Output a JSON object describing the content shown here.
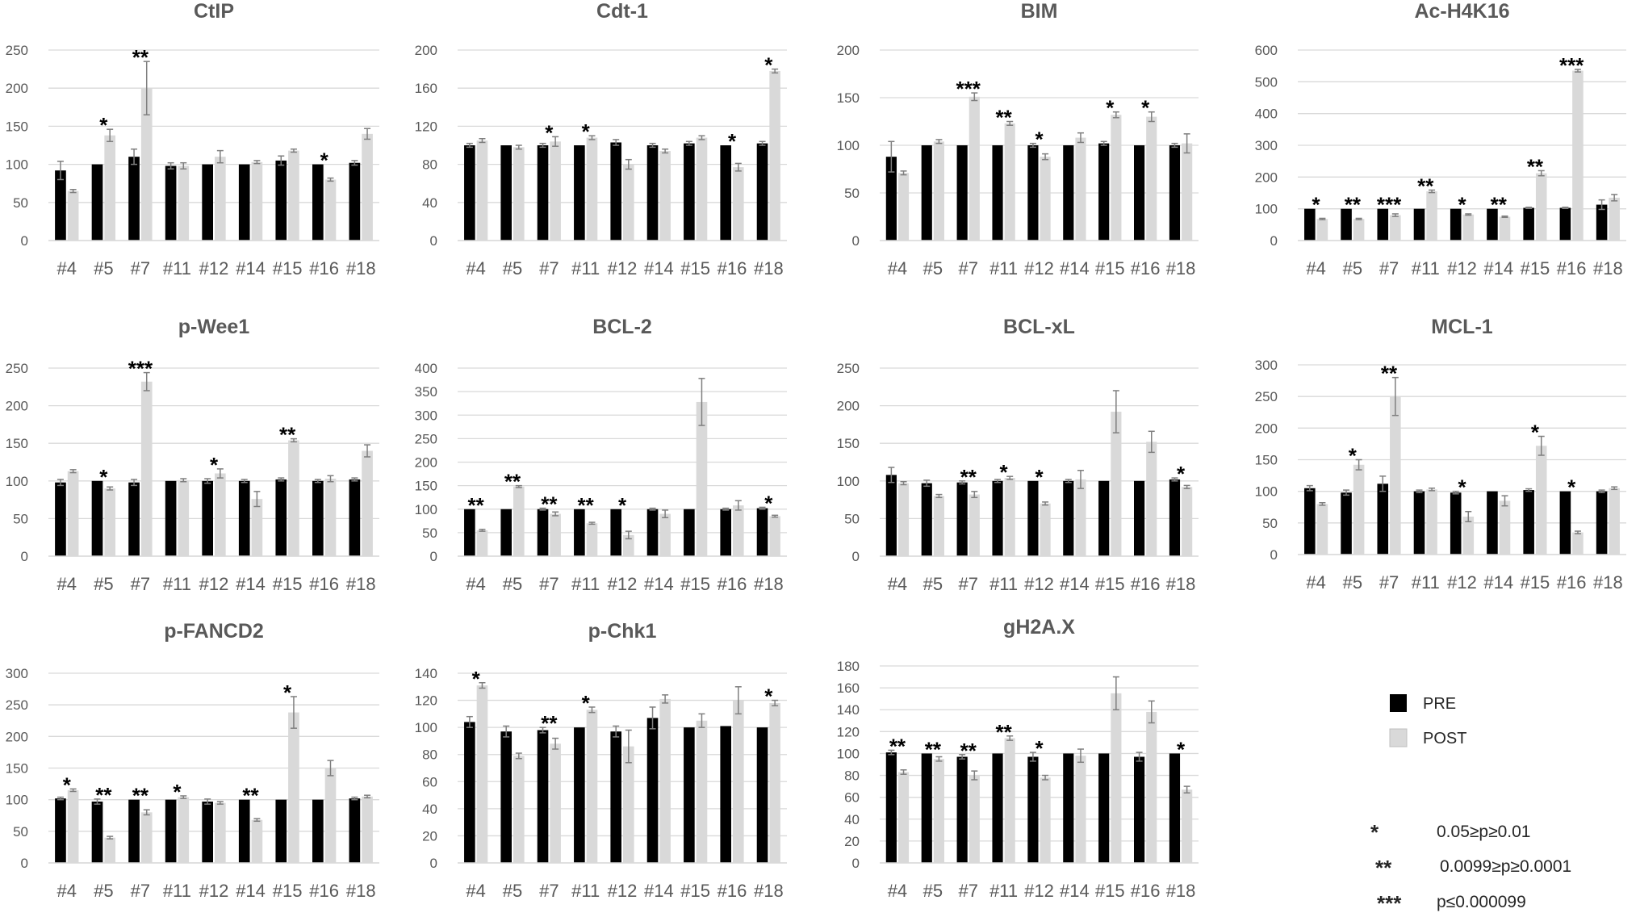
{
  "legend": {
    "series": [
      {
        "name": "PRE",
        "color": "#000000"
      },
      {
        "name": "POST",
        "color": "#d9d9d9"
      }
    ],
    "significance": [
      {
        "symbol": "*",
        "label": "0.05≥p≥0.01"
      },
      {
        "symbol": "**",
        "label": "0.0099≥p≥0.0001"
      },
      {
        "symbol": "***",
        "label": "p≤0.000099"
      }
    ]
  },
  "chart_data": [
    {
      "type": "bar",
      "title": "CtIP",
      "categories": [
        "#4",
        "#5",
        "#7",
        "#11",
        "#12",
        "#14",
        "#15",
        "#16",
        "#18"
      ],
      "ylim": [
        0,
        250
      ],
      "yticks": [
        0,
        50,
        100,
        150,
        200,
        250
      ],
      "series": [
        {
          "name": "PRE",
          "values": [
            92,
            100,
            110,
            98,
            100,
            100,
            105,
            100,
            102
          ],
          "errors": [
            12,
            0,
            10,
            4,
            0,
            0,
            6,
            0,
            3
          ]
        },
        {
          "name": "POST",
          "values": [
            65,
            138,
            200,
            98,
            110,
            103,
            118,
            80,
            140
          ],
          "errors": [
            2,
            8,
            35,
            4,
            8,
            2,
            2,
            2,
            7
          ]
        }
      ],
      "significance": [
        "",
        "*",
        "**",
        "",
        "",
        "",
        "",
        "*",
        ""
      ]
    },
    {
      "type": "bar",
      "title": "Cdt-1",
      "categories": [
        "#4",
        "#5",
        "#7",
        "#11",
        "#12",
        "#14",
        "#15",
        "#16",
        "#18"
      ],
      "ylim": [
        0,
        200
      ],
      "yticks": [
        0,
        40,
        80,
        120,
        160,
        200
      ],
      "series": [
        {
          "name": "PRE",
          "values": [
            100,
            100,
            100,
            100,
            103,
            100,
            102,
            100,
            102
          ],
          "errors": [
            2,
            0,
            2,
            0,
            3,
            2,
            2,
            0,
            2
          ]
        },
        {
          "name": "POST",
          "values": [
            105,
            98,
            104,
            108,
            80,
            94,
            108,
            77,
            178
          ],
          "errors": [
            2,
            2,
            5,
            2,
            5,
            2,
            2,
            4,
            2
          ]
        }
      ],
      "significance": [
        "",
        "",
        "*",
        "*",
        "",
        "",
        "",
        "*",
        "*"
      ]
    },
    {
      "type": "bar",
      "title": "BIM",
      "categories": [
        "#4",
        "#5",
        "#7",
        "#11",
        "#12",
        "#14",
        "#15",
        "#16",
        "#18"
      ],
      "ylim": [
        0,
        200
      ],
      "yticks": [
        0,
        50,
        100,
        150,
        200
      ],
      "series": [
        {
          "name": "PRE",
          "values": [
            88,
            100,
            100,
            100,
            100,
            100,
            102,
            100,
            100
          ],
          "errors": [
            16,
            0,
            0,
            0,
            2,
            0,
            2,
            0,
            2
          ]
        },
        {
          "name": "POST",
          "values": [
            71,
            104,
            151,
            123,
            88,
            108,
            132,
            130,
            102
          ],
          "errors": [
            2,
            2,
            4,
            2,
            3,
            5,
            3,
            5,
            10
          ]
        }
      ],
      "significance": [
        "",
        "",
        "***",
        "**",
        "*",
        "",
        "*",
        "*",
        ""
      ]
    },
    {
      "type": "bar",
      "title": "Ac-H4K16",
      "categories": [
        "#4",
        "#5",
        "#7",
        "#11",
        "#12",
        "#14",
        "#15",
        "#16",
        "#18"
      ],
      "ylim": [
        0,
        600
      ],
      "yticks": [
        0,
        100,
        200,
        300,
        400,
        500,
        600
      ],
      "series": [
        {
          "name": "PRE",
          "values": [
            100,
            100,
            100,
            100,
            100,
            100,
            103,
            103,
            113
          ],
          "errors": [
            0,
            0,
            0,
            0,
            0,
            0,
            2,
            2,
            15
          ]
        },
        {
          "name": "POST",
          "values": [
            68,
            68,
            80,
            155,
            82,
            75,
            212,
            535,
            135
          ],
          "errors": [
            2,
            2,
            4,
            4,
            2,
            2,
            8,
            4,
            10
          ]
        }
      ],
      "significance": [
        "*",
        "**",
        "***",
        "**",
        "*",
        "**",
        "**",
        "***",
        ""
      ]
    },
    {
      "type": "bar",
      "title": "p-Wee1",
      "categories": [
        "#4",
        "#5",
        "#7",
        "#11",
        "#12",
        "#14",
        "#15",
        "#16",
        "#18"
      ],
      "ylim": [
        0,
        250
      ],
      "yticks": [
        0,
        50,
        100,
        150,
        200,
        250
      ],
      "series": [
        {
          "name": "PRE",
          "values": [
            98,
            100,
            98,
            100,
            100,
            100,
            102,
            100,
            102
          ],
          "errors": [
            4,
            0,
            4,
            0,
            3,
            2,
            2,
            2,
            2
          ]
        },
        {
          "name": "POST",
          "values": [
            113,
            90,
            232,
            101,
            110,
            76,
            154,
            103,
            140
          ],
          "errors": [
            2,
            2,
            12,
            2,
            6,
            10,
            2,
            4,
            8
          ]
        }
      ],
      "significance": [
        "",
        "*",
        "***",
        "",
        "*",
        "",
        "**",
        "",
        ""
      ]
    },
    {
      "type": "bar",
      "title": "BCL-2",
      "categories": [
        "#4",
        "#5",
        "#7",
        "#11",
        "#12",
        "#14",
        "#15",
        "#16",
        "#18"
      ],
      "ylim": [
        0,
        400
      ],
      "yticks": [
        0,
        50,
        100,
        150,
        200,
        250,
        300,
        350,
        400
      ],
      "series": [
        {
          "name": "PRE",
          "values": [
            100,
            100,
            100,
            100,
            100,
            100,
            100,
            100,
            102
          ],
          "errors": [
            0,
            0,
            2,
            0,
            0,
            2,
            0,
            2,
            2
          ]
        },
        {
          "name": "POST",
          "values": [
            55,
            148,
            90,
            70,
            45,
            90,
            328,
            108,
            85
          ],
          "errors": [
            2,
            2,
            4,
            2,
            8,
            8,
            50,
            10,
            2
          ]
        }
      ],
      "significance": [
        "**",
        "**",
        "**",
        "**",
        "*",
        "",
        "",
        "",
        "*"
      ]
    },
    {
      "type": "bar",
      "title": "BCL-xL",
      "categories": [
        "#4",
        "#5",
        "#7",
        "#11",
        "#12",
        "#14",
        "#15",
        "#16",
        "#18"
      ],
      "ylim": [
        0,
        250
      ],
      "yticks": [
        0,
        50,
        100,
        150,
        200,
        250
      ],
      "series": [
        {
          "name": "PRE",
          "values": [
            108,
            97,
            98,
            100,
            100,
            100,
            100,
            100,
            102
          ],
          "errors": [
            10,
            4,
            2,
            2,
            0,
            2,
            0,
            0,
            2
          ]
        },
        {
          "name": "POST",
          "values": [
            97,
            80,
            82,
            104,
            70,
            102,
            192,
            152,
            92
          ],
          "errors": [
            2,
            2,
            4,
            2,
            2,
            12,
            28,
            14,
            2
          ]
        }
      ],
      "significance": [
        "",
        "",
        "**",
        "*",
        "*",
        "",
        "",
        "",
        "*"
      ]
    },
    {
      "type": "bar",
      "title": "MCL-1",
      "categories": [
        "#4",
        "#5",
        "#7",
        "#11",
        "#12",
        "#14",
        "#15",
        "#16",
        "#18"
      ],
      "ylim": [
        0,
        300
      ],
      "yticks": [
        0,
        50,
        100,
        150,
        200,
        250,
        300
      ],
      "series": [
        {
          "name": "PRE",
          "values": [
            105,
            98,
            112,
            100,
            98,
            100,
            102,
            100,
            100
          ],
          "errors": [
            4,
            4,
            12,
            2,
            2,
            0,
            2,
            0,
            2
          ]
        },
        {
          "name": "POST",
          "values": [
            80,
            142,
            250,
            103,
            60,
            85,
            172,
            35,
            105
          ],
          "errors": [
            2,
            8,
            30,
            2,
            8,
            8,
            15,
            2,
            2
          ]
        }
      ],
      "significance": [
        "",
        "*",
        "**",
        "",
        "*",
        "",
        "*",
        "*",
        ""
      ]
    },
    {
      "type": "bar",
      "title": "p-FANCD2",
      "categories": [
        "#4",
        "#5",
        "#7",
        "#11",
        "#12",
        "#14",
        "#15",
        "#16",
        "#18"
      ],
      "ylim": [
        0,
        300
      ],
      "yticks": [
        0,
        50,
        100,
        150,
        200,
        250,
        300
      ],
      "series": [
        {
          "name": "PRE",
          "values": [
            102,
            97,
            100,
            100,
            97,
            100,
            100,
            100,
            102
          ],
          "errors": [
            2,
            4,
            0,
            0,
            4,
            0,
            0,
            0,
            2
          ]
        },
        {
          "name": "POST",
          "values": [
            115,
            40,
            80,
            104,
            95,
            68,
            238,
            150,
            105
          ],
          "errors": [
            2,
            2,
            4,
            2,
            2,
            2,
            25,
            12,
            2
          ]
        }
      ],
      "significance": [
        "*",
        "**",
        "**",
        "*",
        "",
        "**",
        "*",
        "",
        ""
      ]
    },
    {
      "type": "bar",
      "title": "p-Chk1",
      "categories": [
        "#4",
        "#5",
        "#7",
        "#11",
        "#12",
        "#14",
        "#15",
        "#16",
        "#18"
      ],
      "ylim": [
        0,
        140
      ],
      "yticks": [
        0,
        20,
        40,
        60,
        80,
        100,
        120,
        140
      ],
      "series": [
        {
          "name": "PRE",
          "values": [
            104,
            97,
            98,
            100,
            97,
            107,
            100,
            101,
            100
          ],
          "errors": [
            4,
            4,
            2,
            0,
            4,
            8,
            0,
            0,
            0
          ]
        },
        {
          "name": "POST",
          "values": [
            131,
            79,
            88,
            113,
            86,
            121,
            105,
            120,
            118
          ],
          "errors": [
            2,
            2,
            4,
            2,
            12,
            3,
            5,
            10,
            2
          ]
        }
      ],
      "significance": [
        "*",
        "",
        "**",
        "*",
        "",
        "",
        "",
        "",
        "*"
      ]
    },
    {
      "type": "bar",
      "title": "gH2A.X",
      "categories": [
        "#4",
        "#5",
        "#7",
        "#11",
        "#12",
        "#14",
        "#15",
        "#16",
        "#18"
      ],
      "ylim": [
        0,
        180
      ],
      "yticks": [
        0,
        20,
        40,
        60,
        80,
        100,
        120,
        140,
        160,
        180
      ],
      "series": [
        {
          "name": "PRE",
          "values": [
            101,
            100,
            97,
            100,
            97,
            100,
            100,
            97,
            100
          ],
          "errors": [
            2,
            0,
            2,
            0,
            4,
            0,
            0,
            4,
            0
          ]
        },
        {
          "name": "POST",
          "values": [
            83,
            95,
            80,
            114,
            78,
            98,
            155,
            138,
            67
          ],
          "errors": [
            2,
            2,
            4,
            2,
            2,
            6,
            15,
            10,
            3
          ]
        }
      ],
      "significance": [
        "**",
        "**",
        "**",
        "**",
        "*",
        "",
        "",
        "",
        "*"
      ]
    }
  ]
}
